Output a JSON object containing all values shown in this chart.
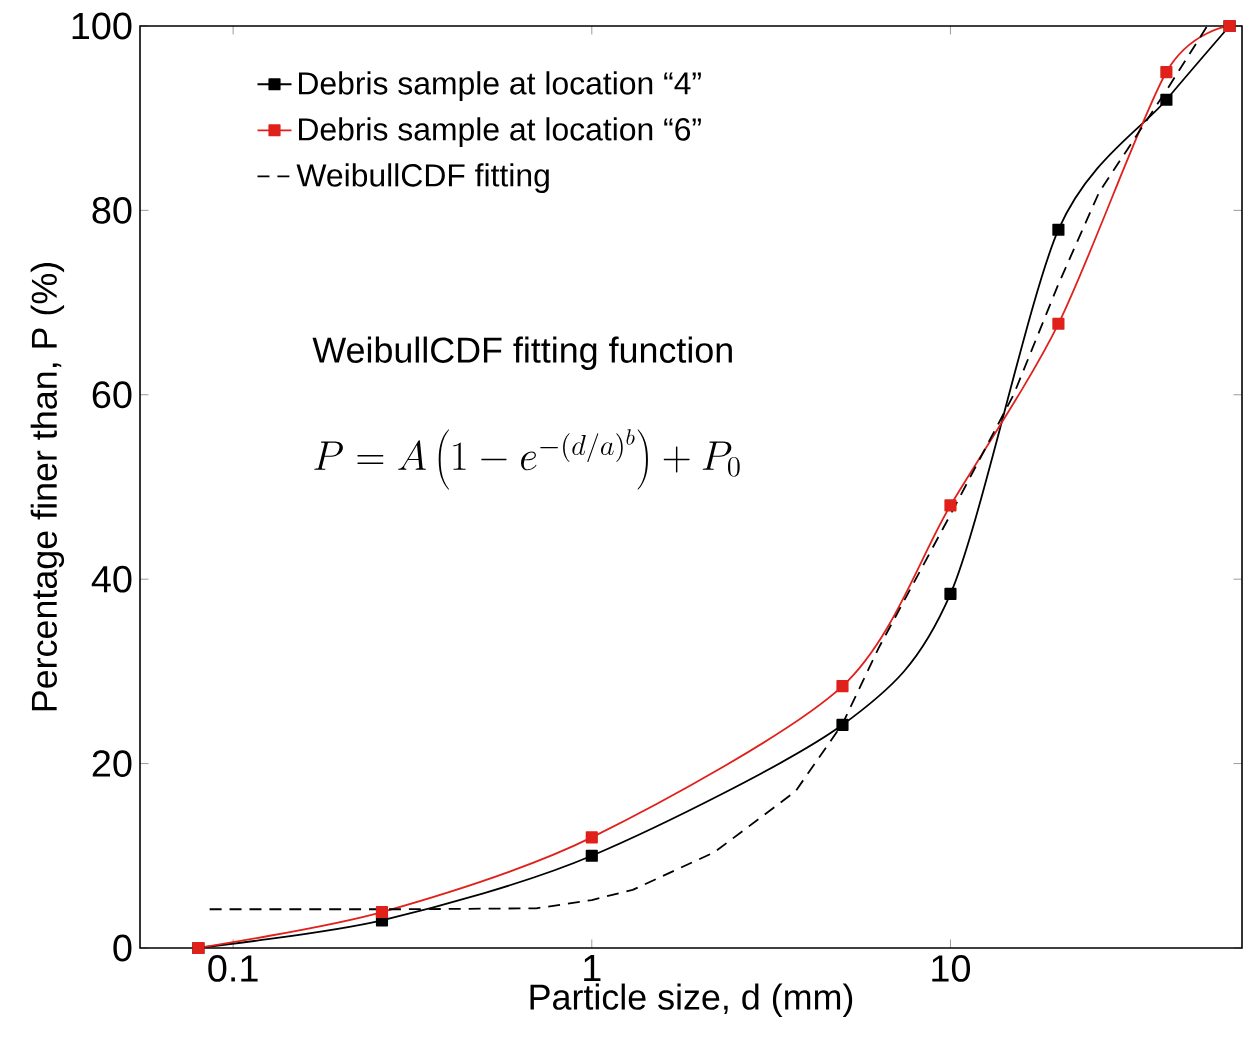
{
  "chart_data": {
    "type": "line",
    "xlabel": "Particle size, d (mm)",
    "ylabel": "Percentage finer than, P (%)",
    "log": "x",
    "xlim": [
      0.055,
      65
    ],
    "ylim": [
      0,
      100
    ],
    "xticks": [
      0.1,
      1,
      10
    ],
    "yticks": [
      0,
      20,
      40,
      60,
      80,
      100
    ],
    "grid": false,
    "legend": "top left",
    "annotations": [
      "WeibullCDF fitting function",
      "P = A\\left(1 - e^{-(d/a)^{b}}\\right) + P_{0}"
    ],
    "series": [
      {
        "name": "Debris sample at location “4”",
        "color": "#000000",
        "marker": "square",
        "line_style": "solid",
        "x": [
          0.08,
          0.26,
          1,
          5,
          10,
          20,
          40,
          60
        ],
        "values": [
          0,
          3,
          10,
          24.2,
          38.4,
          77.9,
          92,
          100
        ]
      },
      {
        "name": "Debris sample at location “6”",
        "color": "#e0201b",
        "marker": "square",
        "line_style": "solid",
        "x": [
          0.08,
          0.26,
          1,
          5,
          10,
          20,
          40,
          60
        ],
        "values": [
          0,
          3.9,
          12,
          28.4,
          48,
          67.7,
          95,
          100
        ]
      },
      {
        "name": "WeibullCDF fitting",
        "color": "#000000",
        "marker": "none",
        "line_style": "dashed",
        "x": [
          0.086,
          0.3,
          0.7,
          1,
          1.3,
          2.2,
          3.7,
          5,
          6.3,
          10,
          15,
          20,
          26,
          40,
          52
        ],
        "values": [
          4.2,
          4.2,
          4.3,
          5.2,
          6.3,
          10.4,
          17,
          24.3,
          32.5,
          47,
          60,
          72,
          82,
          93,
          100
        ]
      }
    ]
  }
}
